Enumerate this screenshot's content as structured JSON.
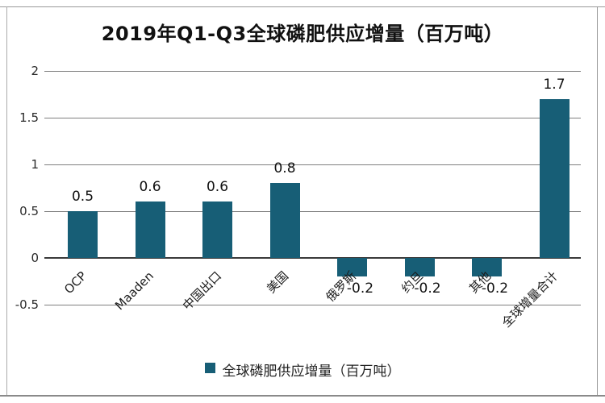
{
  "chart_data": {
    "type": "bar",
    "title": "2019年Q1-Q3全球磷肥供应增量（百万吨）",
    "categories": [
      "OCP",
      "Maaden",
      "中国出口",
      "美国",
      "俄罗斯",
      "约旦",
      "其他",
      "全球增量合计"
    ],
    "values": [
      0.5,
      0.6,
      0.6,
      0.8,
      -0.2,
      -0.2,
      -0.2,
      1.7
    ],
    "data_labels": [
      "0.5",
      "0.6",
      "0.6",
      "0.8",
      "-0.2",
      "-0.2",
      "-0.2",
      "1.7"
    ],
    "y_ticks": [
      2,
      1.5,
      1,
      0.5,
      0,
      -0.5
    ],
    "ylim": [
      -0.5,
      2
    ],
    "grid": true,
    "legend_position": "bottom",
    "legend_label": "全球磷肥供应增量（百万吨）",
    "bar_color": "#175E76",
    "gridline_color": "#7f7f7f",
    "zero_axis_color": "#3a3a3a"
  }
}
